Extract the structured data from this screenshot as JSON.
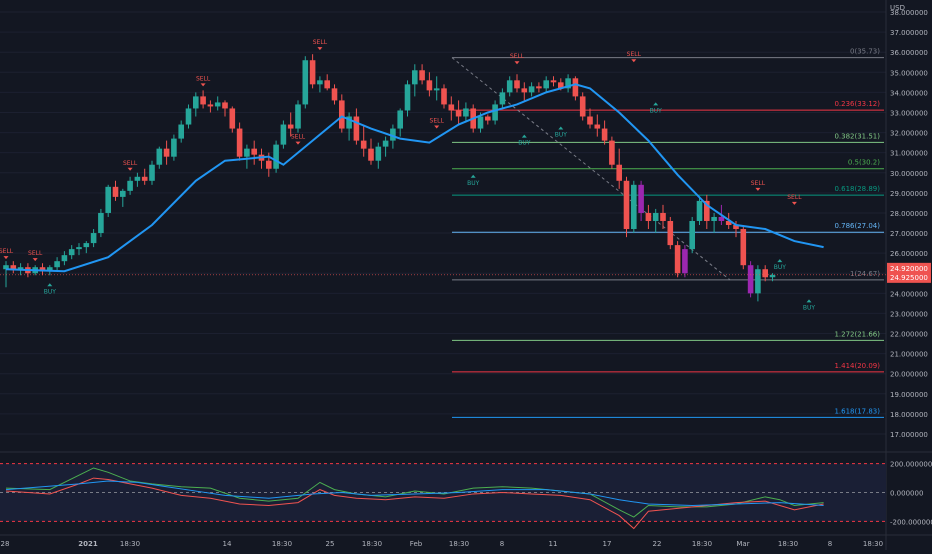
{
  "chart_data": {
    "type": "candlestick",
    "currency": "USD",
    "price_axis": {
      "min": 17,
      "max": 38,
      "ticks": [
        "17.000000",
        "18.000000",
        "19.000000",
        "20.000000",
        "21.000000",
        "22.000000",
        "23.000000",
        "24.000000",
        "25.000000",
        "26.000000",
        "27.000000",
        "28.000000",
        "29.000000",
        "30.000000",
        "31.000000",
        "32.000000",
        "33.000000",
        "34.000000",
        "35.000000",
        "36.000000",
        "37.000000",
        "38.000000"
      ]
    },
    "last_price_labels": [
      "24.920000",
      "24.925000"
    ],
    "x_ticks": [
      "28",
      "2021",
      "18:30",
      "14",
      "18:30",
      "25",
      "18:30",
      "Feb",
      "18:30",
      "8",
      "11",
      "17",
      "22",
      "18:30",
      "Mar",
      "18:30",
      "8",
      "18:30"
    ],
    "candles": [
      [
        25.2,
        25.6,
        24.3,
        25.4
      ],
      [
        25.4,
        25.6,
        25.0,
        25.2
      ],
      [
        25.2,
        25.5,
        24.9,
        25.3
      ],
      [
        25.3,
        25.5,
        24.8,
        25.0
      ],
      [
        25.0,
        25.4,
        24.9,
        25.3
      ],
      [
        25.3,
        25.5,
        24.9,
        25.1
      ],
      [
        25.1,
        25.4,
        24.9,
        25.3
      ],
      [
        25.3,
        25.8,
        25.1,
        25.6
      ],
      [
        25.6,
        26.1,
        25.4,
        25.9
      ],
      [
        25.9,
        26.4,
        25.7,
        26.2
      ],
      [
        26.2,
        26.5,
        25.9,
        26.3
      ],
      [
        26.3,
        26.6,
        26.0,
        26.5
      ],
      [
        26.5,
        27.2,
        26.3,
        27.0
      ],
      [
        27.0,
        28.2,
        26.8,
        28.0
      ],
      [
        28.0,
        29.4,
        27.8,
        29.3
      ],
      [
        29.3,
        29.6,
        28.6,
        28.8
      ],
      [
        28.8,
        29.2,
        28.3,
        29.1
      ],
      [
        29.1,
        29.8,
        28.9,
        29.6
      ],
      [
        29.6,
        30.0,
        29.3,
        29.8
      ],
      [
        29.8,
        30.2,
        29.4,
        29.6
      ],
      [
        29.6,
        30.6,
        29.4,
        30.4
      ],
      [
        30.4,
        31.3,
        30.2,
        31.2
      ],
      [
        31.2,
        31.6,
        30.4,
        30.8
      ],
      [
        30.8,
        31.9,
        30.6,
        31.7
      ],
      [
        31.7,
        32.6,
        31.5,
        32.4
      ],
      [
        32.4,
        33.4,
        32.2,
        33.2
      ],
      [
        33.2,
        34.0,
        32.8,
        33.8
      ],
      [
        33.8,
        34.1,
        33.2,
        33.4
      ],
      [
        33.4,
        33.6,
        33.0,
        33.3
      ],
      [
        33.3,
        33.8,
        33.1,
        33.5
      ],
      [
        33.5,
        33.6,
        32.8,
        33.2
      ],
      [
        33.2,
        33.3,
        32.0,
        32.2
      ],
      [
        32.2,
        32.5,
        30.6,
        30.8
      ],
      [
        30.8,
        31.4,
        30.2,
        31.2
      ],
      [
        31.2,
        31.6,
        30.4,
        30.9
      ],
      [
        30.9,
        31.2,
        30.2,
        30.6
      ],
      [
        30.6,
        31.0,
        29.8,
        30.2
      ],
      [
        30.2,
        31.6,
        30.0,
        31.4
      ],
      [
        31.4,
        32.6,
        31.2,
        32.4
      ],
      [
        32.4,
        33.0,
        31.8,
        32.2
      ],
      [
        32.2,
        33.6,
        32.0,
        33.4
      ],
      [
        33.4,
        35.8,
        33.2,
        35.6
      ],
      [
        35.6,
        35.9,
        34.2,
        34.4
      ],
      [
        34.4,
        34.8,
        34.0,
        34.6
      ],
      [
        34.6,
        34.9,
        34.1,
        34.2
      ],
      [
        34.2,
        34.4,
        33.4,
        33.6
      ],
      [
        33.6,
        33.9,
        32.0,
        32.2
      ],
      [
        32.2,
        33.0,
        31.6,
        32.8
      ],
      [
        32.8,
        33.2,
        31.4,
        31.6
      ],
      [
        31.6,
        32.4,
        30.8,
        31.2
      ],
      [
        31.2,
        31.7,
        30.4,
        30.6
      ],
      [
        30.6,
        31.5,
        30.2,
        31.3
      ],
      [
        31.3,
        31.8,
        30.8,
        31.6
      ],
      [
        31.6,
        32.4,
        31.2,
        32.2
      ],
      [
        32.2,
        33.2,
        31.8,
        33.1
      ],
      [
        33.1,
        34.6,
        32.8,
        34.4
      ],
      [
        34.4,
        35.4,
        33.8,
        35.1
      ],
      [
        35.1,
        35.4,
        34.4,
        34.6
      ],
      [
        34.6,
        35.0,
        33.8,
        34.1
      ],
      [
        34.1,
        34.8,
        33.6,
        34.2
      ],
      [
        34.2,
        34.4,
        33.2,
        33.4
      ],
      [
        33.4,
        33.8,
        32.6,
        33.1
      ],
      [
        33.1,
        33.6,
        32.4,
        32.8
      ],
      [
        32.8,
        33.5,
        32.5,
        33.2
      ],
      [
        33.2,
        33.4,
        32.0,
        32.2
      ],
      [
        32.2,
        33.0,
        32.0,
        32.8
      ],
      [
        32.8,
        32.9,
        32.4,
        32.6
      ],
      [
        32.6,
        33.6,
        32.4,
        33.4
      ],
      [
        33.4,
        34.2,
        33.2,
        34.0
      ],
      [
        34.0,
        34.8,
        33.8,
        34.6
      ],
      [
        34.6,
        34.9,
        34.0,
        34.2
      ],
      [
        34.2,
        34.5,
        33.6,
        34.0
      ],
      [
        34.0,
        34.5,
        33.8,
        34.3
      ],
      [
        34.3,
        34.5,
        34.0,
        34.2
      ],
      [
        34.2,
        34.8,
        34.0,
        34.6
      ],
      [
        34.6,
        34.8,
        34.3,
        34.5
      ],
      [
        34.5,
        34.7,
        34.1,
        34.2
      ],
      [
        34.2,
        34.9,
        34.0,
        34.7
      ],
      [
        34.7,
        34.8,
        33.6,
        33.8
      ],
      [
        33.8,
        34.0,
        32.6,
        32.8
      ],
      [
        32.8,
        33.2,
        32.2,
        32.4
      ],
      [
        32.4,
        32.9,
        31.8,
        32.2
      ],
      [
        32.2,
        32.6,
        31.4,
        31.6
      ],
      [
        31.6,
        31.8,
        30.2,
        30.4
      ],
      [
        30.4,
        31.2,
        29.2,
        29.6
      ],
      [
        29.6,
        29.8,
        26.8,
        27.2
      ],
      [
        27.2,
        29.6,
        27.0,
        29.4
      ],
      [
        29.4,
        29.6,
        27.6,
        28.0
      ],
      [
        28.0,
        28.4,
        27.2,
        27.6
      ],
      [
        27.6,
        28.2,
        27.0,
        28.0
      ],
      [
        28.0,
        28.4,
        27.2,
        27.6
      ],
      [
        27.6,
        27.8,
        26.2,
        26.4
      ],
      [
        26.4,
        26.6,
        24.8,
        25.0
      ],
      [
        25.0,
        26.4,
        24.8,
        26.2
      ],
      [
        26.2,
        27.8,
        26.0,
        27.6
      ],
      [
        27.6,
        28.8,
        27.4,
        28.6
      ],
      [
        28.6,
        28.9,
        27.2,
        27.6
      ],
      [
        27.6,
        28.0,
        27.0,
        27.8
      ],
      [
        27.8,
        28.4,
        27.4,
        27.6
      ],
      [
        27.6,
        28.0,
        27.2,
        27.4
      ],
      [
        27.4,
        27.6,
        26.8,
        27.2
      ],
      [
        27.2,
        27.4,
        25.2,
        25.4
      ],
      [
        25.4,
        25.6,
        23.8,
        24.0
      ],
      [
        24.0,
        25.4,
        23.6,
        25.2
      ],
      [
        25.2,
        25.4,
        24.6,
        24.8
      ],
      [
        24.8,
        25.0,
        24.6,
        24.92
      ]
    ],
    "purple_candles": [
      87,
      93,
      98,
      102
    ],
    "moving_average": [
      [
        0,
        25.2
      ],
      [
        8,
        25.1
      ],
      [
        14,
        25.8
      ],
      [
        20,
        27.4
      ],
      [
        26,
        29.6
      ],
      [
        30,
        30.6
      ],
      [
        36,
        30.8
      ],
      [
        38,
        30.4
      ],
      [
        42,
        31.6
      ],
      [
        46,
        32.8
      ],
      [
        50,
        32.2
      ],
      [
        54,
        31.7
      ],
      [
        58,
        31.5
      ],
      [
        62,
        32.4
      ],
      [
        66,
        33.0
      ],
      [
        70,
        33.4
      ],
      [
        74,
        34.0
      ],
      [
        78,
        34.4
      ],
      [
        80,
        34.2
      ],
      [
        84,
        33.0
      ],
      [
        88,
        31.6
      ],
      [
        92,
        29.9
      ],
      [
        96,
        28.4
      ],
      [
        100,
        27.4
      ],
      [
        104,
        27.2
      ],
      [
        108,
        26.6
      ],
      [
        112,
        26.3
      ]
    ],
    "fibonacci": {
      "levels": [
        {
          "label": "0(35.73)",
          "value": 35.73,
          "color": "#787b86"
        },
        {
          "label": "0.236(33.12)",
          "value": 33.12,
          "color": "#f23645"
        },
        {
          "label": "0.382(31.51)",
          "value": 31.51,
          "color": "#81c784"
        },
        {
          "label": "0.5(30.2)",
          "value": 30.2,
          "color": "#4caf50"
        },
        {
          "label": "0.618(28.89)",
          "value": 28.89,
          "color": "#089981"
        },
        {
          "label": "0.786(27.04)",
          "value": 27.04,
          "color": "#64b5f6"
        },
        {
          "label": "1(24.67)",
          "value": 24.67,
          "color": "#787b86"
        },
        {
          "label": "1.272(21.66)",
          "value": 21.66,
          "color": "#81c784"
        },
        {
          "label": "1.414(20.09)",
          "value": 20.09,
          "color": "#f23645"
        },
        {
          "label": "1.618(17.83)",
          "value": 17.83,
          "color": "#2196f3"
        }
      ]
    },
    "signals": [
      {
        "type": "sell",
        "label": "SELL",
        "i": 0,
        "price": 25.7
      },
      {
        "type": "sell",
        "label": "SELL",
        "i": 4,
        "price": 25.6
      },
      {
        "type": "buy",
        "label": "BUY",
        "i": 6,
        "price": 24.6
      },
      {
        "type": "sell",
        "label": "SELL",
        "i": 17,
        "price": 30.1
      },
      {
        "type": "sell",
        "label": "SELL",
        "i": 27,
        "price": 34.3
      },
      {
        "type": "sell",
        "label": "SELL",
        "i": 40,
        "price": 31.4
      },
      {
        "type": "sell",
        "label": "SELL",
        "i": 43,
        "price": 36.1
      },
      {
        "type": "sell",
        "label": "SELL",
        "i": 59,
        "price": 32.2
      },
      {
        "type": "buy",
        "label": "BUY",
        "i": 64,
        "price": 30.0
      },
      {
        "type": "sell",
        "label": "SELL",
        "i": 70,
        "price": 35.4
      },
      {
        "type": "buy",
        "label": "BUY",
        "i": 71,
        "price": 32.0
      },
      {
        "type": "buy",
        "label": "BUY",
        "i": 76,
        "price": 32.4
      },
      {
        "type": "sell",
        "label": "SELL",
        "i": 86,
        "price": 35.5
      },
      {
        "type": "buy",
        "label": "BUY",
        "i": 89,
        "price": 33.6
      },
      {
        "type": "sell",
        "label": "SELL",
        "i": 103,
        "price": 29.1
      },
      {
        "type": "buy",
        "label": "BUY",
        "i": 106,
        "price": 25.8
      },
      {
        "type": "sell",
        "label": "SELL",
        "i": 108,
        "price": 28.4
      },
      {
        "type": "buy",
        "label": "BUY",
        "i": 110,
        "price": 23.8
      }
    ],
    "oscillator": {
      "ticks": [
        "200.000000",
        "0.000000",
        "-200.000000"
      ],
      "range": [
        -260,
        260
      ],
      "bands": [
        200,
        0,
        -200
      ],
      "line_green": [
        [
          0,
          30
        ],
        [
          6,
          20
        ],
        [
          10,
          120
        ],
        [
          12,
          170
        ],
        [
          14,
          140
        ],
        [
          17,
          80
        ],
        [
          20,
          60
        ],
        [
          24,
          40
        ],
        [
          28,
          30
        ],
        [
          32,
          -40
        ],
        [
          36,
          -60
        ],
        [
          40,
          -40
        ],
        [
          43,
          70
        ],
        [
          45,
          20
        ],
        [
          48,
          -10
        ],
        [
          52,
          -30
        ],
        [
          56,
          10
        ],
        [
          60,
          -10
        ],
        [
          64,
          30
        ],
        [
          68,
          40
        ],
        [
          72,
          30
        ],
        [
          76,
          10
        ],
        [
          80,
          -10
        ],
        [
          84,
          -120
        ],
        [
          86,
          -170
        ],
        [
          88,
          -90
        ],
        [
          92,
          -100
        ],
        [
          96,
          -100
        ],
        [
          100,
          -80
        ],
        [
          104,
          -30
        ],
        [
          106,
          -50
        ],
        [
          108,
          -90
        ],
        [
          112,
          -70
        ]
      ],
      "line_red": [
        [
          0,
          10
        ],
        [
          6,
          -10
        ],
        [
          10,
          60
        ],
        [
          12,
          100
        ],
        [
          14,
          90
        ],
        [
          17,
          60
        ],
        [
          20,
          30
        ],
        [
          24,
          -20
        ],
        [
          28,
          -40
        ],
        [
          32,
          -80
        ],
        [
          36,
          -90
        ],
        [
          40,
          -70
        ],
        [
          43,
          20
        ],
        [
          45,
          -20
        ],
        [
          48,
          -40
        ],
        [
          52,
          -50
        ],
        [
          56,
          -30
        ],
        [
          60,
          -40
        ],
        [
          64,
          -10
        ],
        [
          68,
          0
        ],
        [
          72,
          -10
        ],
        [
          76,
          -20
        ],
        [
          80,
          -50
        ],
        [
          84,
          -160
        ],
        [
          86,
          -250
        ],
        [
          88,
          -130
        ],
        [
          92,
          -110
        ],
        [
          96,
          -90
        ],
        [
          100,
          -70
        ],
        [
          104,
          -60
        ],
        [
          106,
          -90
        ],
        [
          108,
          -120
        ],
        [
          112,
          -80
        ]
      ],
      "line_blue": [
        [
          0,
          20
        ],
        [
          10,
          60
        ],
        [
          14,
          80
        ],
        [
          18,
          70
        ],
        [
          22,
          40
        ],
        [
          26,
          10
        ],
        [
          30,
          -20
        ],
        [
          36,
          -40
        ],
        [
          42,
          -10
        ],
        [
          46,
          0
        ],
        [
          50,
          -20
        ],
        [
          56,
          -10
        ],
        [
          62,
          0
        ],
        [
          68,
          20
        ],
        [
          74,
          20
        ],
        [
          80,
          -10
        ],
        [
          84,
          -50
        ],
        [
          88,
          -80
        ],
        [
          94,
          -90
        ],
        [
          100,
          -80
        ],
        [
          106,
          -70
        ],
        [
          112,
          -90
        ]
      ]
    }
  }
}
